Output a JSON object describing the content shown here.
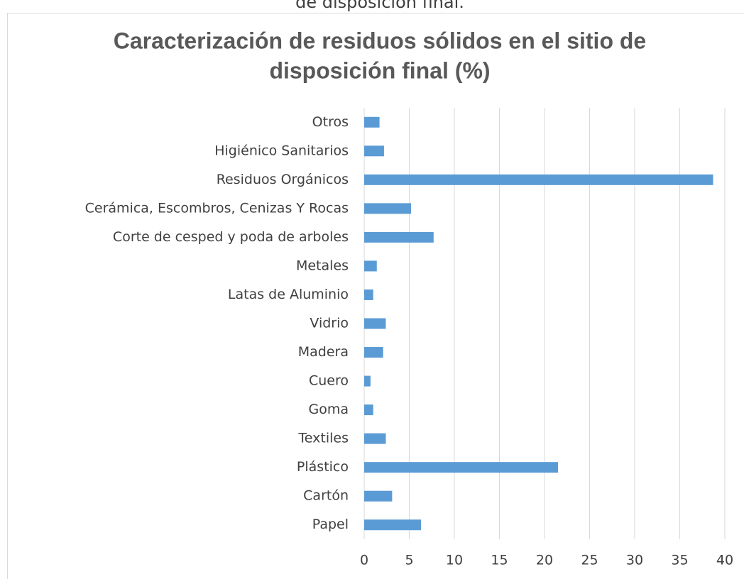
{
  "caption_fragment": "de disposición final.",
  "chart_data": {
    "type": "bar",
    "orientation": "horizontal",
    "title_lines": [
      "Caracterización de residuos sólidos en el sitio de",
      "disposición final (%)"
    ],
    "categories": [
      "Papel",
      "Cartón",
      "Plástico",
      "Textiles",
      "Goma",
      "Cuero",
      "Madera",
      "Vidrio",
      "Latas de Aluminio",
      "Metales",
      "Corte de cesped y poda de arboles",
      "Cerámica, Escombros, Cenizas Y Rocas",
      "Residuos Orgánicos",
      "Higiénico Sanitarios",
      "Otros"
    ],
    "values": [
      6.3,
      3.1,
      21.5,
      2.4,
      1.0,
      0.7,
      2.1,
      2.4,
      1.0,
      1.4,
      7.7,
      5.2,
      38.7,
      2.2,
      1.7
    ],
    "color": "#5b9bd5",
    "xlim": [
      0,
      40
    ],
    "xticks": [
      0,
      5,
      10,
      15,
      20,
      25,
      30,
      35,
      40
    ],
    "grid": true
  }
}
